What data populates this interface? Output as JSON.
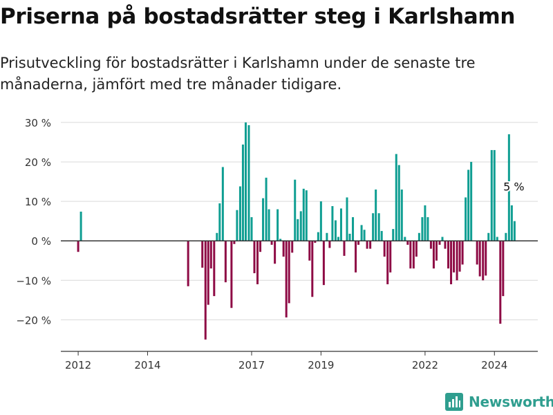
{
  "title": "Priserna på bostadsrätter steg i Karlshamn",
  "subtitle": "Prisutveckling för bostadsrätter i Karlshamn under de senaste tre månaderna, jämfört med tre månader tidigare.",
  "brand": "Newsworthy",
  "colors": {
    "positive": "#0f9e92",
    "negative": "#8e0b45",
    "grid": "#d9d9d9",
    "zero": "#333333",
    "brand": "#2f9e8f"
  },
  "chart_data": {
    "type": "bar",
    "title": "Priserna på bostadsrätter steg i Karlshamn",
    "xlabel": "",
    "ylabel": "",
    "ylim": [
      -28,
      30
    ],
    "yticks": [
      -20,
      -10,
      0,
      10,
      20,
      30
    ],
    "ytick_labels": [
      "−20 %",
      "−10 %",
      "0 %",
      "10 %",
      "20 %",
      "30 %"
    ],
    "xlim": [
      2011.5,
      2025.25
    ],
    "xticks": [
      2012,
      2014,
      2017,
      2019,
      2022,
      2024
    ],
    "xtick_labels": [
      "2012",
      "2014",
      "2017",
      "2019",
      "2022",
      "2024"
    ],
    "grid": true,
    "annotation": {
      "text": "5 %",
      "x": 2024.6,
      "y": 5
    },
    "bars": [
      {
        "x": 2012.0,
        "y": -2.8
      },
      {
        "x": 2012.08,
        "y": 7.4
      },
      {
        "x": 2015.17,
        "y": -11.5
      },
      {
        "x": 2015.58,
        "y": -6.8
      },
      {
        "x": 2015.67,
        "y": -25.0
      },
      {
        "x": 2015.75,
        "y": -16.2
      },
      {
        "x": 2015.83,
        "y": -7.0
      },
      {
        "x": 2015.92,
        "y": -14.0
      },
      {
        "x": 2016.0,
        "y": 2.0
      },
      {
        "x": 2016.08,
        "y": 9.5
      },
      {
        "x": 2016.17,
        "y": 18.7
      },
      {
        "x": 2016.25,
        "y": -10.5
      },
      {
        "x": 2016.42,
        "y": -17.0
      },
      {
        "x": 2016.5,
        "y": -0.8
      },
      {
        "x": 2016.58,
        "y": 7.8
      },
      {
        "x": 2016.67,
        "y": 13.8
      },
      {
        "x": 2016.75,
        "y": 24.4
      },
      {
        "x": 2016.83,
        "y": 30.0
      },
      {
        "x": 2016.92,
        "y": 29.3
      },
      {
        "x": 2017.0,
        "y": 6.0
      },
      {
        "x": 2017.08,
        "y": -8.2
      },
      {
        "x": 2017.17,
        "y": -11.0
      },
      {
        "x": 2017.25,
        "y": -2.8
      },
      {
        "x": 2017.33,
        "y": 10.8
      },
      {
        "x": 2017.42,
        "y": 16.0
      },
      {
        "x": 2017.5,
        "y": 8.0
      },
      {
        "x": 2017.58,
        "y": -1.0
      },
      {
        "x": 2017.67,
        "y": -5.8
      },
      {
        "x": 2017.75,
        "y": 8.0
      },
      {
        "x": 2017.83,
        "y": 0.5
      },
      {
        "x": 2017.92,
        "y": -4.0
      },
      {
        "x": 2018.0,
        "y": -19.4
      },
      {
        "x": 2018.08,
        "y": -15.8
      },
      {
        "x": 2018.17,
        "y": -3.0
      },
      {
        "x": 2018.25,
        "y": 15.5
      },
      {
        "x": 2018.33,
        "y": 5.5
      },
      {
        "x": 2018.42,
        "y": 7.5
      },
      {
        "x": 2018.5,
        "y": 13.2
      },
      {
        "x": 2018.58,
        "y": 12.8
      },
      {
        "x": 2018.67,
        "y": -5.0
      },
      {
        "x": 2018.75,
        "y": -14.2
      },
      {
        "x": 2018.83,
        "y": -0.5
      },
      {
        "x": 2018.92,
        "y": 2.2
      },
      {
        "x": 2019.0,
        "y": 10.0
      },
      {
        "x": 2019.08,
        "y": -11.2
      },
      {
        "x": 2019.17,
        "y": 2.0
      },
      {
        "x": 2019.25,
        "y": -1.8
      },
      {
        "x": 2019.33,
        "y": 8.8
      },
      {
        "x": 2019.42,
        "y": 5.2
      },
      {
        "x": 2019.5,
        "y": 1.0
      },
      {
        "x": 2019.58,
        "y": 8.2
      },
      {
        "x": 2019.67,
        "y": -3.8
      },
      {
        "x": 2019.75,
        "y": 11.0
      },
      {
        "x": 2019.83,
        "y": 1.8
      },
      {
        "x": 2019.92,
        "y": 6.0
      },
      {
        "x": 2020.0,
        "y": -8.0
      },
      {
        "x": 2020.08,
        "y": -1.0
      },
      {
        "x": 2020.17,
        "y": 4.0
      },
      {
        "x": 2020.25,
        "y": 2.8
      },
      {
        "x": 2020.33,
        "y": -2.0
      },
      {
        "x": 2020.42,
        "y": -2.0
      },
      {
        "x": 2020.5,
        "y": 7.0
      },
      {
        "x": 2020.58,
        "y": 13.0
      },
      {
        "x": 2020.67,
        "y": 7.0
      },
      {
        "x": 2020.75,
        "y": 2.5
      },
      {
        "x": 2020.83,
        "y": -4.0
      },
      {
        "x": 2020.92,
        "y": -11.0
      },
      {
        "x": 2021.0,
        "y": -8.0
      },
      {
        "x": 2021.08,
        "y": 3.0
      },
      {
        "x": 2021.17,
        "y": 22.0
      },
      {
        "x": 2021.25,
        "y": 19.2
      },
      {
        "x": 2021.33,
        "y": 13.0
      },
      {
        "x": 2021.42,
        "y": 1.0
      },
      {
        "x": 2021.5,
        "y": -1.0
      },
      {
        "x": 2021.58,
        "y": -7.0
      },
      {
        "x": 2021.67,
        "y": -7.0
      },
      {
        "x": 2021.75,
        "y": -4.0
      },
      {
        "x": 2021.83,
        "y": 2.0
      },
      {
        "x": 2021.92,
        "y": 6.0
      },
      {
        "x": 2022.0,
        "y": 9.0
      },
      {
        "x": 2022.08,
        "y": 6.0
      },
      {
        "x": 2022.17,
        "y": -2.0
      },
      {
        "x": 2022.25,
        "y": -7.0
      },
      {
        "x": 2022.33,
        "y": -5.0
      },
      {
        "x": 2022.42,
        "y": -1.0
      },
      {
        "x": 2022.5,
        "y": 1.0
      },
      {
        "x": 2022.58,
        "y": -2.0
      },
      {
        "x": 2022.67,
        "y": -7.0
      },
      {
        "x": 2022.75,
        "y": -11.0
      },
      {
        "x": 2022.83,
        "y": -8.0
      },
      {
        "x": 2022.92,
        "y": -10.0
      },
      {
        "x": 2023.0,
        "y": -7.8
      },
      {
        "x": 2023.08,
        "y": -6.0
      },
      {
        "x": 2023.17,
        "y": 11.0
      },
      {
        "x": 2023.25,
        "y": 18.0
      },
      {
        "x": 2023.33,
        "y": 20.0
      },
      {
        "x": 2023.5,
        "y": -6.0
      },
      {
        "x": 2023.58,
        "y": -9.0
      },
      {
        "x": 2023.67,
        "y": -10.0
      },
      {
        "x": 2023.75,
        "y": -8.8
      },
      {
        "x": 2023.83,
        "y": 2.0
      },
      {
        "x": 2023.92,
        "y": 23.0
      },
      {
        "x": 2024.0,
        "y": 23.0
      },
      {
        "x": 2024.08,
        "y": 1.0
      },
      {
        "x": 2024.17,
        "y": -21.0
      },
      {
        "x": 2024.25,
        "y": -14.0
      },
      {
        "x": 2024.33,
        "y": 2.0
      },
      {
        "x": 2024.42,
        "y": 27.0
      },
      {
        "x": 2024.5,
        "y": 9.0
      },
      {
        "x": 2024.58,
        "y": 5.0
      }
    ]
  }
}
